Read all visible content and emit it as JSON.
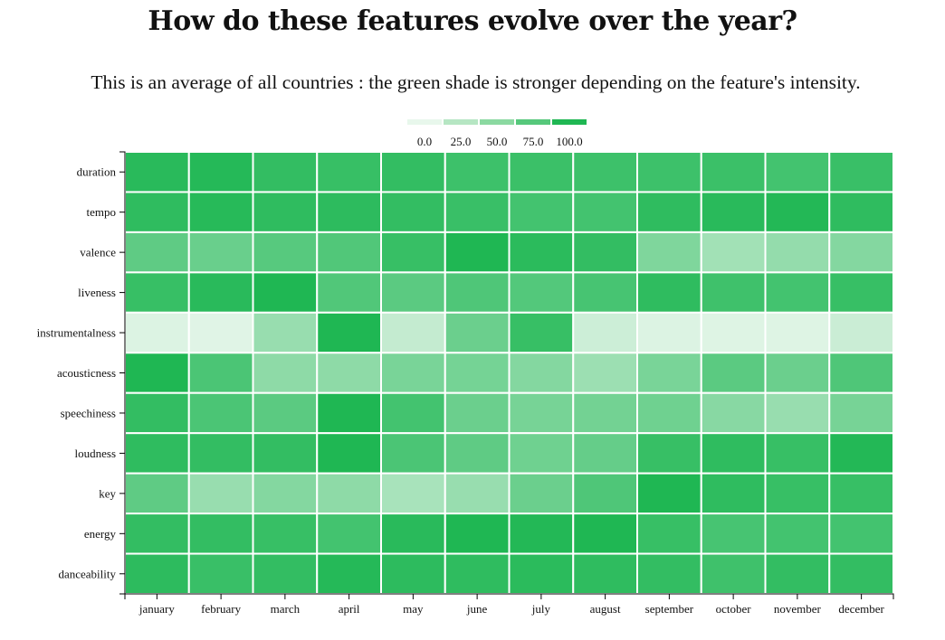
{
  "title": "How do these features evolve over the year?",
  "subtitle": "This is an average of all countries : the green shade is stronger depending on the feature's intensity.",
  "legend": {
    "labels": [
      "0.0",
      "25.0",
      "50.0",
      "75.0",
      "100.0"
    ],
    "colors": [
      "#e8f7ec",
      "#b6e6c3",
      "#8bd9a1",
      "#56c87b",
      "#1fb753"
    ]
  },
  "chart_data": {
    "type": "heatmap",
    "x": [
      "january",
      "february",
      "march",
      "april",
      "may",
      "june",
      "july",
      "august",
      "september",
      "october",
      "november",
      "december"
    ],
    "y": [
      "duration",
      "tempo",
      "valence",
      "liveness",
      "instrumentalness",
      "acousticness",
      "speechiness",
      "loudness",
      "key",
      "energy",
      "danceability"
    ],
    "value_range": [
      0,
      100
    ],
    "color_low": "#e8f7ec",
    "color_high": "#1fb753",
    "values": [
      [
        95,
        97,
        90,
        88,
        90,
        85,
        86,
        85,
        85,
        86,
        82,
        87
      ],
      [
        92,
        96,
        92,
        93,
        90,
        87,
        82,
        82,
        92,
        95,
        98,
        92
      ],
      [
        68,
        63,
        72,
        75,
        88,
        100,
        94,
        90,
        52,
        35,
        42,
        50
      ],
      [
        88,
        95,
        100,
        75,
        70,
        76,
        74,
        80,
        92,
        84,
        82,
        88
      ],
      [
        6,
        4,
        40,
        100,
        18,
        62,
        88,
        14,
        6,
        5,
        5,
        15
      ],
      [
        100,
        78,
        45,
        45,
        55,
        57,
        50,
        38,
        55,
        70,
        62,
        76
      ],
      [
        90,
        78,
        70,
        100,
        82,
        62,
        56,
        58,
        60,
        48,
        40,
        56
      ],
      [
        92,
        90,
        90,
        100,
        78,
        68,
        60,
        65,
        88,
        92,
        88,
        98
      ],
      [
        68,
        40,
        50,
        45,
        32,
        40,
        62,
        76,
        100,
        92,
        88,
        88
      ],
      [
        90,
        90,
        88,
        82,
        95,
        100,
        98,
        100,
        88,
        80,
        82,
        82
      ],
      [
        93,
        87,
        90,
        97,
        93,
        92,
        94,
        92,
        90,
        84,
        90,
        90
      ]
    ]
  }
}
